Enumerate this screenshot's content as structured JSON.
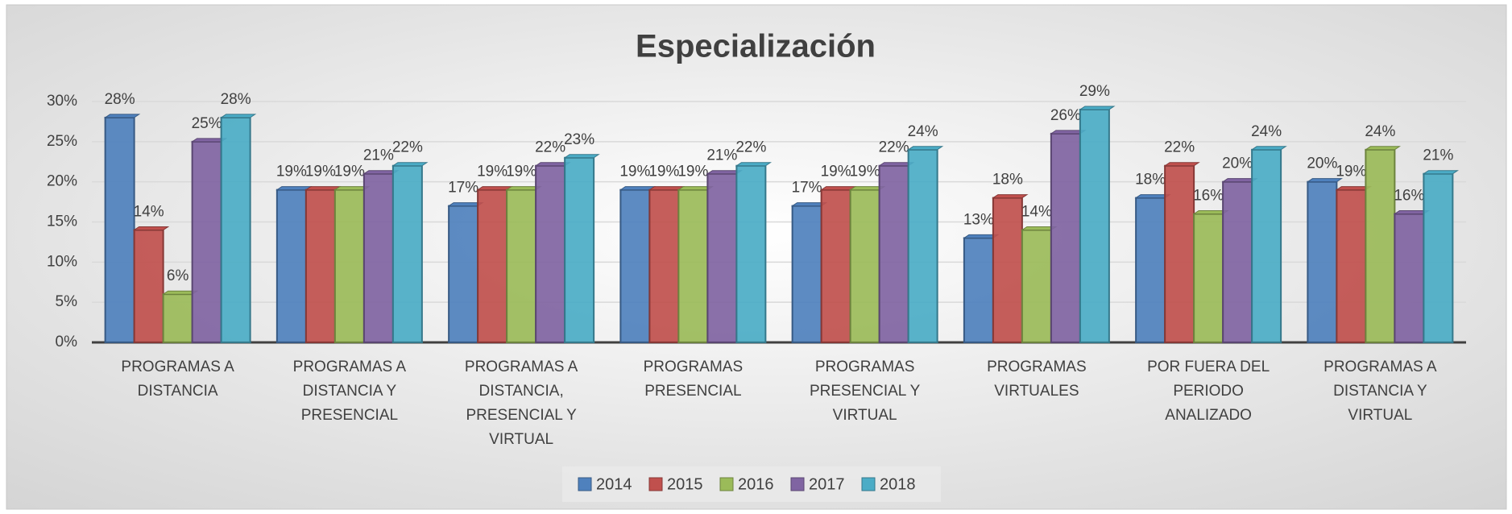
{
  "chart_data": {
    "type": "bar",
    "title": "Especialización",
    "categories": [
      "PROGRAMAS A DISTANCIA",
      "PROGRAMAS A DISTANCIA Y PRESENCIAL",
      "PROGRAMAS A DISTANCIA, PRESENCIAL Y VIRTUAL",
      "PROGRAMAS PRESENCIAL",
      "PROGRAMAS PRESENCIAL Y VIRTUAL",
      "PROGRAMAS VIRTUALES",
      "POR FUERA DEL PERIODO ANALIZADO",
      "PROGRAMAS A DISTANCIA Y VIRTUAL"
    ],
    "series": [
      {
        "name": "2014",
        "color": "#4f81bd",
        "values": [
          28,
          19,
          17,
          19,
          17,
          13,
          18,
          20
        ],
        "value_labels": [
          "28%",
          "19%",
          "17%",
          "19%",
          "17%",
          "13%",
          "18%",
          "20%"
        ]
      },
      {
        "name": "2015",
        "color": "#c0504d",
        "values": [
          14,
          19,
          19,
          19,
          19,
          18,
          22,
          19
        ],
        "value_labels": [
          "14%",
          "19%",
          "19%",
          "19%",
          "19%",
          "18%",
          "22%",
          "19%"
        ]
      },
      {
        "name": "2016",
        "color": "#9bbb59",
        "values": [
          6,
          19,
          19,
          19,
          19,
          14,
          16,
          24
        ],
        "value_labels": [
          "6%",
          "19%",
          "19%",
          "19%",
          "19%",
          "14%",
          "16%",
          "24%"
        ]
      },
      {
        "name": "2017",
        "color": "#8064a2",
        "values": [
          25,
          21,
          22,
          21,
          22,
          26,
          20,
          16
        ],
        "value_labels": [
          "25%",
          "21%",
          "22%",
          "21%",
          "22%",
          "26%",
          "20%",
          "16%"
        ]
      },
      {
        "name": "2018",
        "color": "#4bacc6",
        "values": [
          28,
          22,
          23,
          22,
          24,
          29,
          24,
          21
        ],
        "value_labels": [
          "28%",
          "22%",
          "23%",
          "22%",
          "24%",
          "29%",
          "24%",
          "21%"
        ]
      }
    ],
    "ylim": [
      0,
      30
    ],
    "yticks": [
      {
        "value": 0,
        "label": "0%"
      },
      {
        "value": 5,
        "label": "5%"
      },
      {
        "value": 10,
        "label": "10%"
      },
      {
        "value": 15,
        "label": "15%"
      },
      {
        "value": 20,
        "label": "20%"
      },
      {
        "value": 25,
        "label": "25%"
      },
      {
        "value": 30,
        "label": "30%"
      }
    ],
    "grid": true,
    "legend": "bottom"
  }
}
